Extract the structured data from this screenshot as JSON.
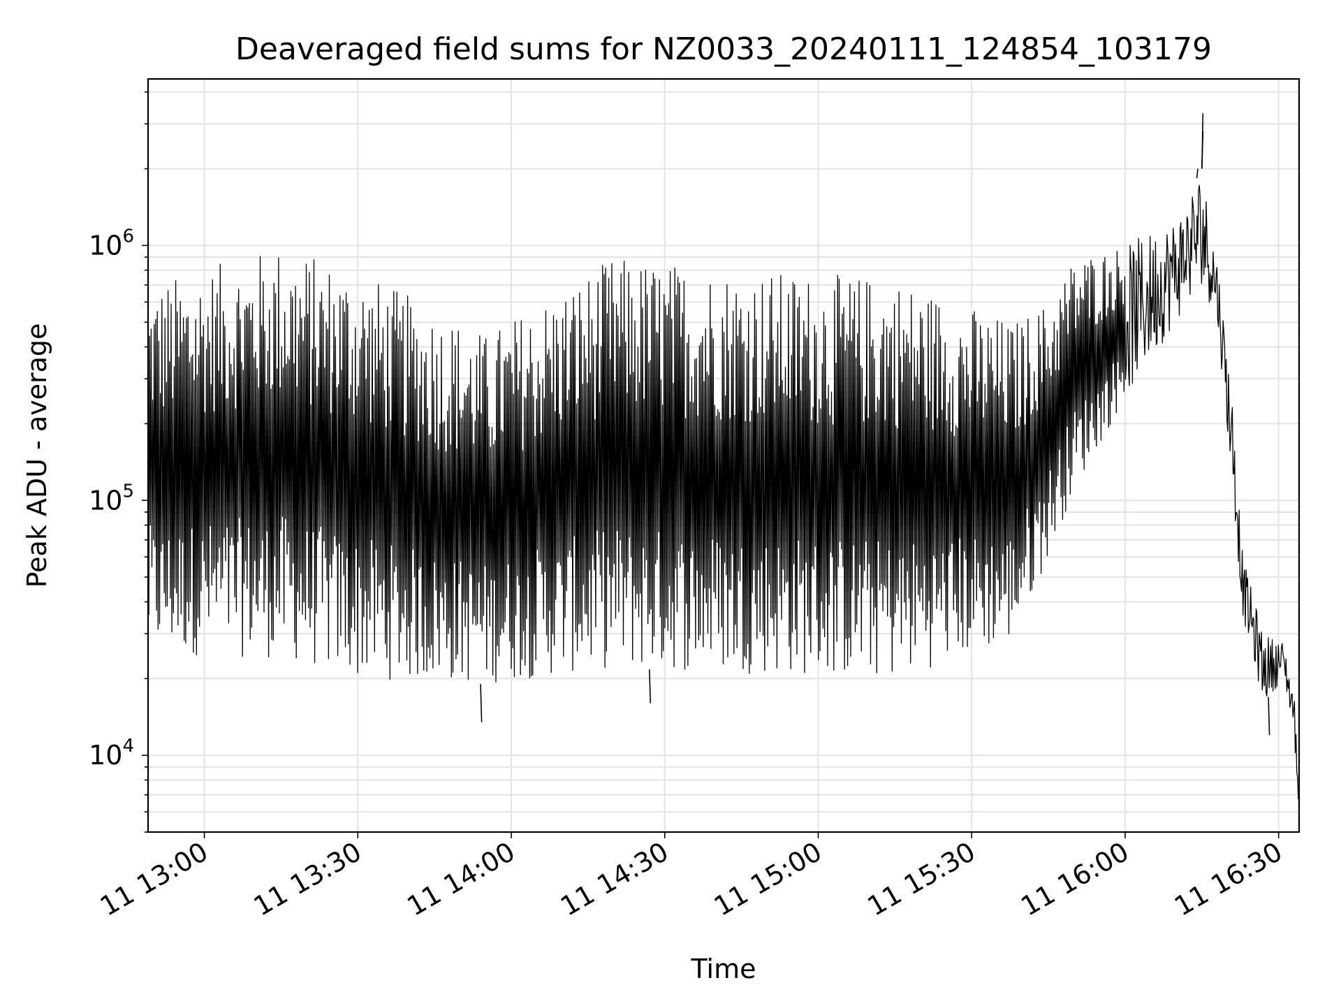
{
  "chart_data": {
    "type": "line",
    "title": "Deaveraged field sums for NZ0033_20240111_124854_103179",
    "xlabel": "Time",
    "ylabel": "Peak ADU - average",
    "y_scale": "log",
    "xlim": [
      "2024-01-11 12:49",
      "2024-01-11 16:34"
    ],
    "ylim": [
      5000,
      4500000
    ],
    "x_ticks": [
      {
        "value": "2024-01-11 13:00",
        "label": "11 13:00"
      },
      {
        "value": "2024-01-11 13:30",
        "label": "11 13:30"
      },
      {
        "value": "2024-01-11 14:00",
        "label": "11 14:00"
      },
      {
        "value": "2024-01-11 14:30",
        "label": "11 14:30"
      },
      {
        "value": "2024-01-11 15:00",
        "label": "11 15:00"
      },
      {
        "value": "2024-01-11 15:30",
        "label": "11 15:30"
      },
      {
        "value": "2024-01-11 16:00",
        "label": "11 16:00"
      },
      {
        "value": "2024-01-11 16:30",
        "label": "11 16:30"
      }
    ],
    "y_ticks": [
      {
        "value": 10000,
        "base": "10",
        "exponent": "4"
      },
      {
        "value": 100000,
        "base": "10",
        "exponent": "5"
      },
      {
        "value": 1000000,
        "base": "10",
        "exponent": "6"
      }
    ],
    "grid": true,
    "line_color": "#000000",
    "series": [
      {
        "envelope": [
          {
            "t": "2024-01-11 12:49",
            "low": 25000,
            "high": 700000
          },
          {
            "t": "2024-01-11 13:15",
            "low": 24000,
            "high": 1000000
          },
          {
            "t": "2024-01-11 13:30",
            "low": 20000,
            "high": 800000
          },
          {
            "t": "2024-01-11 13:55",
            "low": 19000,
            "high": 450000
          },
          {
            "t": "2024-01-11 14:20",
            "low": 22000,
            "high": 900000
          },
          {
            "t": "2024-01-11 14:45",
            "low": 21000,
            "high": 800000
          },
          {
            "t": "2024-01-11 15:15",
            "low": 20000,
            "high": 750000
          },
          {
            "t": "2024-01-11 15:38",
            "low": 28000,
            "high": 500000
          },
          {
            "t": "2024-01-11 15:45",
            "low": 60000,
            "high": 600000
          },
          {
            "t": "2024-01-11 15:50",
            "low": 110000,
            "high": 900000
          },
          {
            "t": "2024-01-11 16:00",
            "low": 250000,
            "high": 1000000
          },
          {
            "t": "2024-01-11 16:10",
            "low": 500000,
            "high": 1300000
          },
          {
            "t": "2024-01-11 16:15",
            "low": 700000,
            "high": 2000000
          },
          {
            "t": "2024-01-11 16:18",
            "low": 500000,
            "high": 900000
          },
          {
            "t": "2024-01-11 16:21",
            "low": 110000,
            "high": 250000
          },
          {
            "t": "2024-01-11 16:23",
            "low": 35000,
            "high": 60000
          },
          {
            "t": "2024-01-11 16:27",
            "low": 16000,
            "high": 30000
          },
          {
            "t": "2024-01-11 16:31",
            "low": 20000,
            "high": 28000
          },
          {
            "t": "2024-01-11 16:33",
            "low": 12000,
            "high": 18000
          },
          {
            "t": "2024-01-11 16:34",
            "low": 6000,
            "high": 8000
          }
        ],
        "spikes": [
          {
            "t": "2024-01-11 16:15",
            "value": 3300000
          },
          {
            "t": "2024-01-11 16:15",
            "value": 2800000
          },
          {
            "t": "2024-01-11 16:14",
            "value": 2000000
          },
          {
            "t": "2024-01-11 13:54",
            "value": 13500
          },
          {
            "t": "2024-01-11 14:27",
            "value": 16000
          },
          {
            "t": "2024-01-11 16:28",
            "value": 12000
          }
        ]
      }
    ]
  }
}
